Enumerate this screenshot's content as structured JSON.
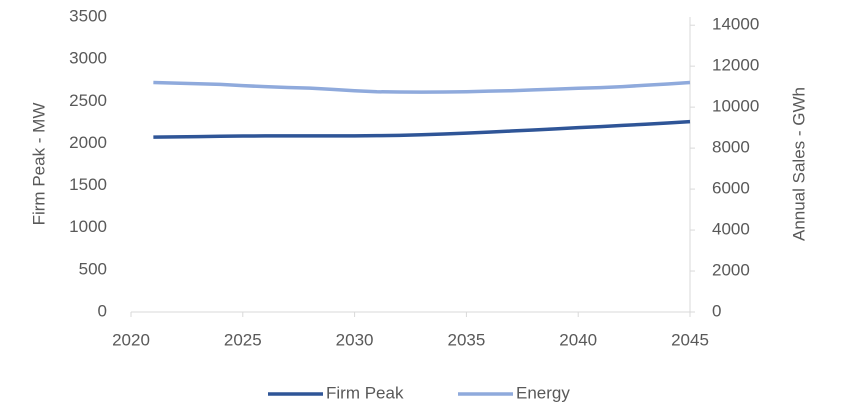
{
  "chart_data": {
    "type": "line",
    "x": [
      2021,
      2022,
      2023,
      2024,
      2025,
      2026,
      2027,
      2028,
      2029,
      2030,
      2031,
      2032,
      2033,
      2034,
      2035,
      2036,
      2037,
      2038,
      2039,
      2040,
      2041,
      2042,
      2043,
      2044,
      2045
    ],
    "series": [
      {
        "name": "Firm Peak",
        "color": "#2f5597",
        "values": [
          2075,
          2078,
          2081,
          2085,
          2088,
          2089,
          2090,
          2090,
          2090,
          2090,
          2092,
          2096,
          2103,
          2112,
          2122,
          2134,
          2147,
          2160,
          2173,
          2187,
          2200,
          2214,
          2228,
          2243,
          2258
        ]
      },
      {
        "name": "Energy",
        "color": "#8faadc",
        "axis": "y2",
        "values": [
          11200,
          11170,
          11140,
          11110,
          11050,
          11000,
          10960,
          10930,
          10870,
          10800,
          10750,
          10740,
          10730,
          10740,
          10750,
          10780,
          10800,
          10840,
          10880,
          10920,
          10950,
          11000,
          11070,
          11130,
          11200
        ]
      }
    ],
    "xlim": [
      2020,
      2045
    ],
    "xticks": [
      2020,
      2025,
      2030,
      2035,
      2040,
      2045
    ],
    "ylim": [
      0,
      3500
    ],
    "yticks": [
      0,
      500,
      1000,
      1500,
      2000,
      2500,
      3000,
      3500
    ],
    "y2lim": [
      0,
      14400
    ],
    "y2ticks": [
      0,
      2000,
      4000,
      6000,
      8000,
      10000,
      12000,
      14000
    ],
    "y_label": "Firm Peak - MW",
    "y2_label": "Annual Sales - GWh",
    "legend": "bottom"
  }
}
